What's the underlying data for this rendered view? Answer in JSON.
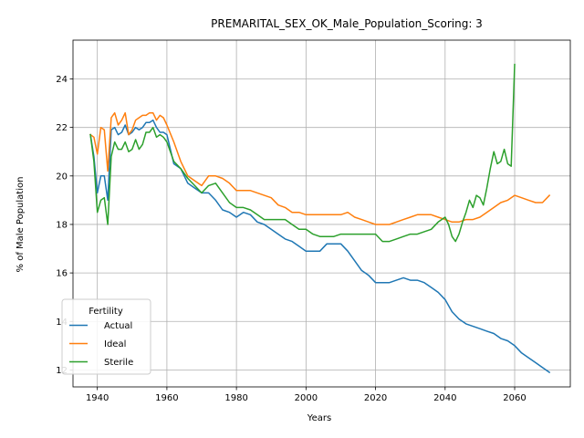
{
  "chart_data": {
    "type": "line",
    "title": "PREMARITAL_SEX_OK_Male_Population_Scoring: 3",
    "xlabel": "Years",
    "ylabel": "% of Male Population",
    "xlim": [
      1933,
      2076
    ],
    "ylim": [
      11.3,
      25.6
    ],
    "xticks": [
      1940,
      1960,
      1980,
      2000,
      2020,
      2040,
      2060
    ],
    "yticks": [
      12,
      14,
      16,
      18,
      20,
      22,
      24
    ],
    "grid": true,
    "legend": {
      "title": "Fertility",
      "position": "lower-left"
    },
    "series": [
      {
        "name": "Actual",
        "color": "#1f77b4",
        "x": [
          1938,
          1939,
          1940,
          1941,
          1942,
          1943,
          1944,
          1945,
          1946,
          1947,
          1948,
          1949,
          1950,
          1951,
          1952,
          1953,
          1954,
          1955,
          1956,
          1957,
          1958,
          1959,
          1960,
          1962,
          1964,
          1966,
          1968,
          1970,
          1972,
          1974,
          1976,
          1978,
          1980,
          1982,
          1984,
          1986,
          1988,
          1990,
          1992,
          1994,
          1996,
          1998,
          2000,
          2002,
          2004,
          2006,
          2008,
          2010,
          2012,
          2014,
          2016,
          2018,
          2020,
          2022,
          2024,
          2026,
          2028,
          2030,
          2032,
          2034,
          2036,
          2038,
          2040,
          2042,
          2044,
          2046,
          2048,
          2050,
          2052,
          2054,
          2056,
          2058,
          2060,
          2062,
          2064,
          2066,
          2068,
          2070
        ],
        "values": [
          21.7,
          20.8,
          19.3,
          20.0,
          20.0,
          19.0,
          21.9,
          22.0,
          21.7,
          21.8,
          22.1,
          21.7,
          21.8,
          22.0,
          21.9,
          22.0,
          22.2,
          22.2,
          22.3,
          22.0,
          21.8,
          21.8,
          21.7,
          20.5,
          20.3,
          19.7,
          19.5,
          19.3,
          19.3,
          19.0,
          18.6,
          18.5,
          18.3,
          18.5,
          18.4,
          18.1,
          18.0,
          17.8,
          17.6,
          17.4,
          17.3,
          17.1,
          16.9,
          16.9,
          16.9,
          17.2,
          17.2,
          17.2,
          16.9,
          16.5,
          16.1,
          15.9,
          15.6,
          15.6,
          15.6,
          15.7,
          15.8,
          15.7,
          15.7,
          15.6,
          15.4,
          15.2,
          14.9,
          14.4,
          14.1,
          13.9,
          13.8,
          13.7,
          13.6,
          13.5,
          13.3,
          13.2,
          13.0,
          12.7,
          12.5,
          12.3,
          12.1,
          11.9
        ]
      },
      {
        "name": "Ideal",
        "color": "#ff7f0e",
        "x": [
          1938,
          1939,
          1940,
          1941,
          1942,
          1943,
          1944,
          1945,
          1946,
          1947,
          1948,
          1949,
          1950,
          1951,
          1952,
          1953,
          1954,
          1955,
          1956,
          1957,
          1958,
          1959,
          1960,
          1962,
          1964,
          1966,
          1968,
          1970,
          1972,
          1974,
          1976,
          1978,
          1980,
          1982,
          1984,
          1986,
          1988,
          1990,
          1992,
          1994,
          1996,
          1998,
          2000,
          2002,
          2004,
          2006,
          2008,
          2010,
          2012,
          2014,
          2016,
          2018,
          2020,
          2022,
          2024,
          2026,
          2028,
          2030,
          2032,
          2034,
          2036,
          2038,
          2040,
          2042,
          2044,
          2046,
          2048,
          2050,
          2052,
          2054,
          2056,
          2058,
          2060,
          2062,
          2064,
          2066,
          2068,
          2070
        ],
        "values": [
          21.7,
          21.6,
          20.9,
          22.0,
          21.9,
          20.2,
          22.4,
          22.6,
          22.1,
          22.3,
          22.6,
          21.7,
          21.9,
          22.3,
          22.4,
          22.5,
          22.5,
          22.6,
          22.6,
          22.3,
          22.5,
          22.4,
          22.1,
          21.4,
          20.6,
          20.0,
          19.8,
          19.6,
          20.0,
          20.0,
          19.9,
          19.7,
          19.4,
          19.4,
          19.4,
          19.3,
          19.2,
          19.1,
          18.8,
          18.7,
          18.5,
          18.5,
          18.4,
          18.4,
          18.4,
          18.4,
          18.4,
          18.4,
          18.5,
          18.3,
          18.2,
          18.1,
          18.0,
          18.0,
          18.0,
          18.1,
          18.2,
          18.3,
          18.4,
          18.4,
          18.4,
          18.3,
          18.2,
          18.1,
          18.1,
          18.2,
          18.2,
          18.3,
          18.5,
          18.7,
          18.9,
          19.0,
          19.2,
          19.1,
          19.0,
          18.9,
          18.9,
          19.2
        ]
      },
      {
        "name": "Sterile",
        "color": "#2ca02c",
        "x": [
          1938,
          1939,
          1940,
          1941,
          1942,
          1943,
          1944,
          1945,
          1946,
          1947,
          1948,
          1949,
          1950,
          1951,
          1952,
          1953,
          1954,
          1955,
          1956,
          1957,
          1958,
          1959,
          1960,
          1962,
          1964,
          1966,
          1968,
          1970,
          1972,
          1974,
          1976,
          1978,
          1980,
          1982,
          1984,
          1986,
          1988,
          1990,
          1992,
          1994,
          1996,
          1998,
          2000,
          2002,
          2004,
          2006,
          2008,
          2010,
          2012,
          2014,
          2016,
          2018,
          2020,
          2022,
          2024,
          2026,
          2028,
          2030,
          2032,
          2034,
          2036,
          2038,
          2040,
          2041,
          2042,
          2043,
          2044,
          2045,
          2046,
          2047,
          2048,
          2049,
          2050,
          2051,
          2052,
          2053,
          2054,
          2055,
          2056,
          2057,
          2058,
          2059,
          2060
        ],
        "values": [
          21.7,
          20.6,
          18.5,
          19.0,
          19.1,
          18.0,
          20.8,
          21.4,
          21.1,
          21.1,
          21.4,
          21.0,
          21.1,
          21.5,
          21.1,
          21.3,
          21.8,
          21.8,
          22.0,
          21.6,
          21.7,
          21.6,
          21.4,
          20.6,
          20.3,
          19.9,
          19.6,
          19.3,
          19.6,
          19.7,
          19.3,
          18.9,
          18.7,
          18.7,
          18.6,
          18.4,
          18.2,
          18.2,
          18.2,
          18.2,
          18.0,
          17.8,
          17.8,
          17.6,
          17.5,
          17.5,
          17.5,
          17.6,
          17.6,
          17.6,
          17.6,
          17.6,
          17.6,
          17.3,
          17.3,
          17.4,
          17.5,
          17.6,
          17.6,
          17.7,
          17.8,
          18.1,
          18.3,
          18.0,
          17.5,
          17.3,
          17.6,
          18.1,
          18.5,
          19.0,
          18.7,
          19.2,
          19.1,
          18.8,
          19.5,
          20.3,
          21.0,
          20.5,
          20.6,
          21.1,
          20.5,
          20.4,
          24.6
        ]
      }
    ]
  }
}
